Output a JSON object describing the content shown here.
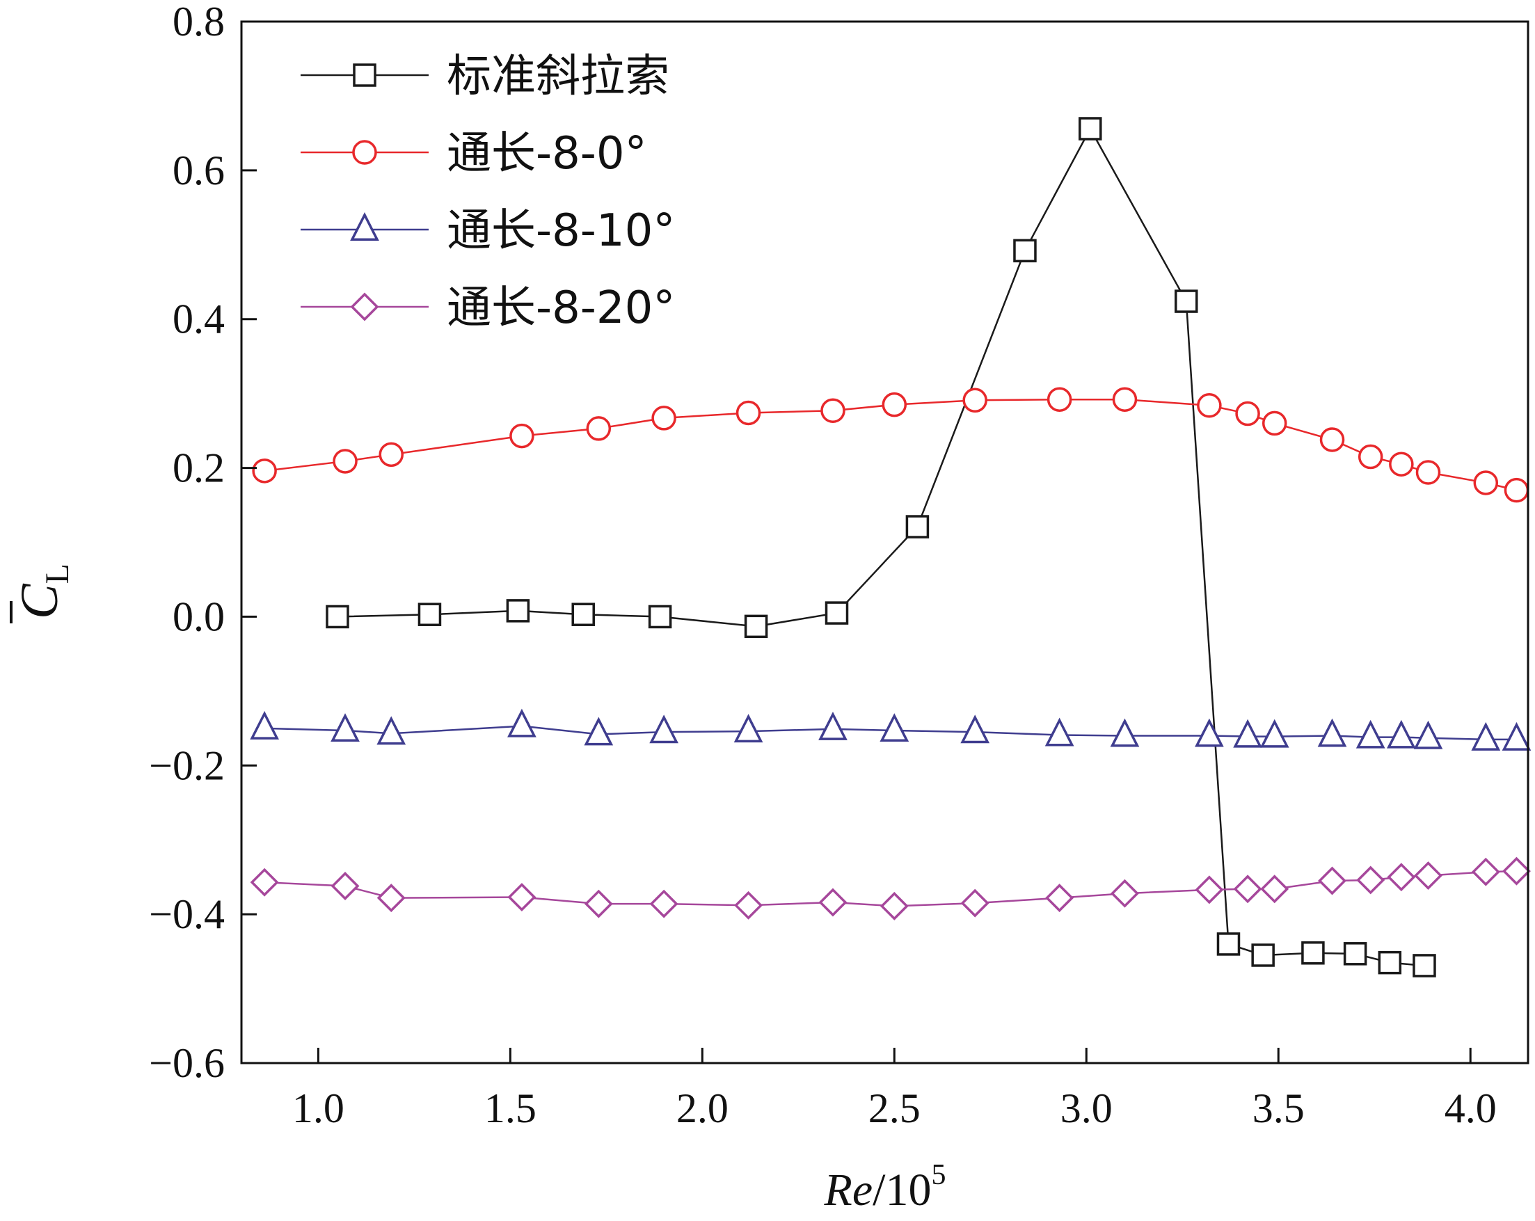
{
  "chart_data": {
    "type": "line",
    "xlabel_main": "Re",
    "xlabel_sep": "/10",
    "xlabel_exp": "5",
    "ylabel_main": "C",
    "ylabel_sub": "L",
    "xlim": [
      0.8,
      4.15
    ],
    "ylim": [
      -0.6,
      0.8
    ],
    "xticks": [
      1.0,
      1.5,
      2.0,
      2.5,
      3.0,
      3.5,
      4.0
    ],
    "xtick_labels": [
      "1.0",
      "1.5",
      "2.0",
      "2.5",
      "3.0",
      "3.5",
      "4.0"
    ],
    "yticks": [
      -0.6,
      -0.4,
      -0.2,
      0.0,
      0.2,
      0.4,
      0.6,
      0.8
    ],
    "ytick_labels": [
      "−0.6",
      "−0.4",
      "−0.2",
      "0.0",
      "0.2",
      "0.4",
      "0.6",
      "0.8"
    ],
    "legend_position": "top-left",
    "series": [
      {
        "name": "标准斜拉索",
        "marker": "square",
        "color": "#1a1a1a",
        "x": [
          1.05,
          1.29,
          1.52,
          1.69,
          1.89,
          2.14,
          2.35,
          2.56,
          2.84,
          3.01,
          3.26,
          3.37,
          3.46,
          3.59,
          3.7,
          3.79,
          3.88
        ],
        "y": [
          0.0,
          0.003,
          0.008,
          0.003,
          0.0,
          -0.013,
          0.005,
          0.121,
          0.492,
          0.656,
          0.424,
          -0.44,
          -0.455,
          -0.452,
          -0.453,
          -0.465,
          -0.469
        ]
      },
      {
        "name": "通长-8-0°",
        "marker": "circle",
        "color": "#e8282b",
        "x": [
          0.86,
          1.07,
          1.19,
          1.53,
          1.73,
          1.9,
          2.12,
          2.34,
          2.5,
          2.71,
          2.93,
          3.1,
          3.32,
          3.42,
          3.49,
          3.64,
          3.74,
          3.82,
          3.89,
          4.04,
          4.12
        ],
        "y": [
          0.196,
          0.209,
          0.218,
          0.243,
          0.253,
          0.267,
          0.274,
          0.277,
          0.285,
          0.291,
          0.292,
          0.292,
          0.284,
          0.273,
          0.26,
          0.238,
          0.215,
          0.205,
          0.194,
          0.18,
          0.17
        ]
      },
      {
        "name": "通长-8-10°",
        "marker": "triangle",
        "color": "#3f3d8f",
        "x": [
          0.86,
          1.07,
          1.19,
          1.53,
          1.73,
          1.9,
          2.12,
          2.34,
          2.5,
          2.71,
          2.93,
          3.1,
          3.32,
          3.42,
          3.49,
          3.64,
          3.74,
          3.82,
          3.89,
          4.04,
          4.12
        ],
        "y": [
          -0.15,
          -0.153,
          -0.157,
          -0.147,
          -0.158,
          -0.155,
          -0.154,
          -0.151,
          -0.153,
          -0.155,
          -0.159,
          -0.16,
          -0.16,
          -0.161,
          -0.161,
          -0.16,
          -0.162,
          -0.162,
          -0.163,
          -0.165,
          -0.165
        ]
      },
      {
        "name": "通长-8-20°",
        "marker": "diamond",
        "color": "#a6479b",
        "x": [
          0.86,
          1.07,
          1.19,
          1.53,
          1.73,
          1.9,
          2.12,
          2.34,
          2.5,
          2.71,
          2.93,
          3.1,
          3.32,
          3.42,
          3.49,
          3.64,
          3.74,
          3.82,
          3.89,
          4.04,
          4.12
        ],
        "y": [
          -0.357,
          -0.362,
          -0.378,
          -0.377,
          -0.386,
          -0.386,
          -0.388,
          -0.384,
          -0.389,
          -0.385,
          -0.378,
          -0.372,
          -0.367,
          -0.366,
          -0.366,
          -0.355,
          -0.354,
          -0.35,
          -0.348,
          -0.343,
          -0.342
        ]
      }
    ]
  }
}
